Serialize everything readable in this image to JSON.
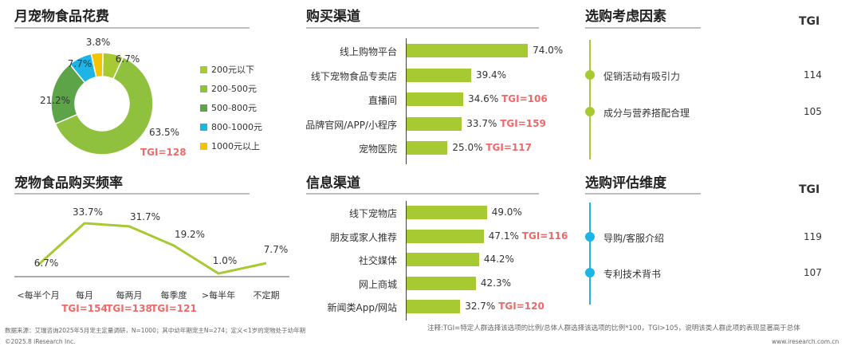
{
  "chart_data": [
    {
      "type": "pie",
      "title": "月宠物食品花费",
      "categories": [
        "200元以下",
        "200-500元",
        "500-800元",
        "800-1000元",
        "1000元以上"
      ],
      "values": [
        6.7,
        63.5,
        21.2,
        7.7,
        3.8
      ],
      "value_labels": [
        "6.7%",
        "63.5%",
        "21.2%",
        "7.7%",
        "3.8%"
      ],
      "colors": [
        "#a7c932",
        "#8fc13e",
        "#5ca447",
        "#1cb5e6",
        "#f5c400"
      ],
      "legend_position": "right",
      "annotation": "TGI=128"
    },
    {
      "type": "line",
      "title": "宠物食品购买频率",
      "categories": [
        "<每半个月",
        "每月",
        "每两月",
        "每季度",
        ">每半年",
        "不定期"
      ],
      "values": [
        6.7,
        33.7,
        31.7,
        19.2,
        1.0,
        7.7
      ],
      "value_labels": [
        "6.7%",
        "33.7%",
        "31.7%",
        "19.2%",
        "1.0%",
        "7.7%"
      ],
      "tgi_labels": [
        "",
        "TGI=154",
        "TGI=138",
        "TGI=121",
        "",
        ""
      ],
      "color": "#a7c932"
    },
    {
      "type": "bar",
      "orientation": "horizontal",
      "title": "购买渠道",
      "categories": [
        "线上购物平台",
        "线下宠物食品专卖店",
        "直播间",
        "品牌官网/APP/小程序",
        "宠物医院"
      ],
      "values": [
        74.0,
        39.4,
        34.6,
        33.7,
        25.0
      ],
      "value_labels": [
        "74.0%",
        "39.4%",
        "34.6%",
        "33.7%",
        "25.0%"
      ],
      "tgi_labels": [
        "",
        "",
        "TGI=106",
        "TGI=159",
        "TGI=117"
      ],
      "xlim": [
        0,
        100
      ],
      "color": "#a7c932"
    },
    {
      "type": "bar",
      "orientation": "horizontal",
      "title": "信息渠道",
      "categories": [
        "线下宠物店",
        "朋友或家人推荐",
        "社交媒体",
        "网上商城",
        "新闻类App/网站"
      ],
      "values": [
        49.0,
        47.1,
        44.2,
        42.3,
        32.7
      ],
      "value_labels": [
        "49.0%",
        "47.1%",
        "44.2%",
        "42.3%",
        "32.7%"
      ],
      "tgi_labels": [
        "",
        "TGI=116",
        "",
        "",
        "TGI=120"
      ],
      "xlim": [
        0,
        100
      ],
      "color": "#a7c932"
    },
    {
      "type": "table",
      "title": "选购考虑因素",
      "header": "TGI",
      "rows": [
        {
          "label": "促销活动有吸引力",
          "value": "114"
        },
        {
          "label": "成分与营养搭配合理",
          "value": "105"
        }
      ],
      "color": "#a7c932"
    },
    {
      "type": "table",
      "title": "选购评估维度",
      "header": "TGI",
      "rows": [
        {
          "label": "导购/客服介绍",
          "value": "119"
        },
        {
          "label": "专利技术背书",
          "value": "107"
        }
      ],
      "color": "#1cb5e6"
    }
  ],
  "footer": {
    "source": "数据来源：艾瑞咨询2025年5月宠主定量调研，N=1000；其中幼年期宠主N=274；定义<1岁的宠物处于幼年期",
    "note": "注释:TGI=特定人群选择该选项的比例/总体人群选择该选项的比例*100，TGI>105，说明该类人群此项的表现显著高于总体",
    "copyright": "©2025.8 iResearch Inc.",
    "website": "www.iresearch.com.cn"
  }
}
